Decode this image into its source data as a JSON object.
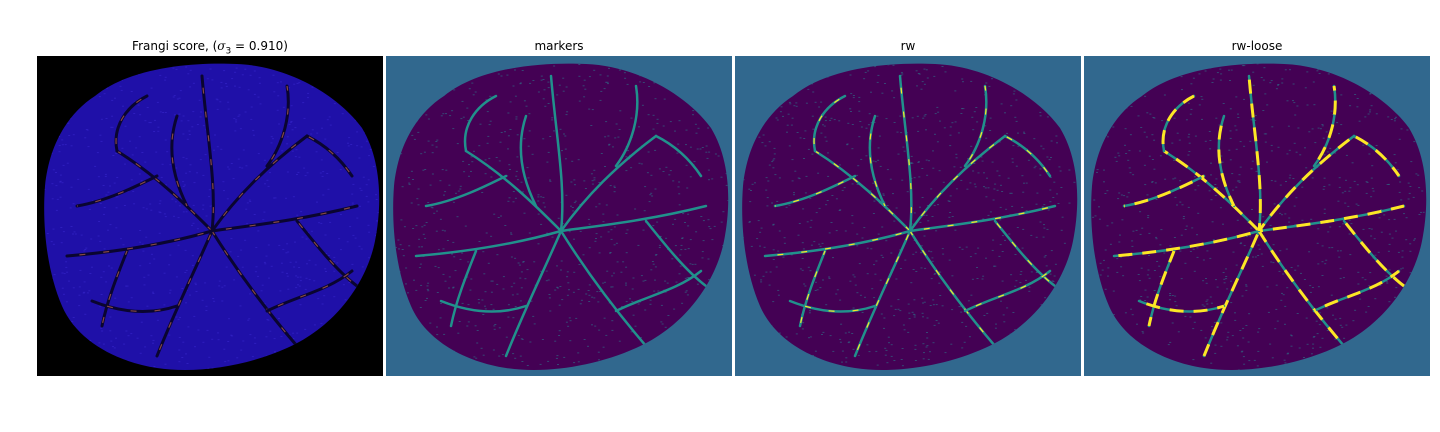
{
  "panels": [
    {
      "id": "frangi",
      "title_prefix": "Frangi score, (",
      "title_symbol": "σ",
      "title_subscript": "3",
      "title_suffix": " = 0.910)",
      "background": "#000000",
      "fill": "#1f10a8",
      "vessel_color": "#0a0530",
      "highlight": "#ff8a5a"
    },
    {
      "id": "markers",
      "title": "markers",
      "background": "#31688e",
      "fill": "#440154",
      "vessel_color": "#21918c",
      "highlight": "#21918c"
    },
    {
      "id": "rw",
      "title": "rw",
      "background": "#31688e",
      "fill": "#440154",
      "vessel_color": "#21918c",
      "highlight": "#fde725"
    },
    {
      "id": "rw-loose",
      "title": "rw-loose",
      "background": "#31688e",
      "fill": "#440154",
      "vessel_color": "#21918c",
      "highlight": "#fde725"
    }
  ]
}
